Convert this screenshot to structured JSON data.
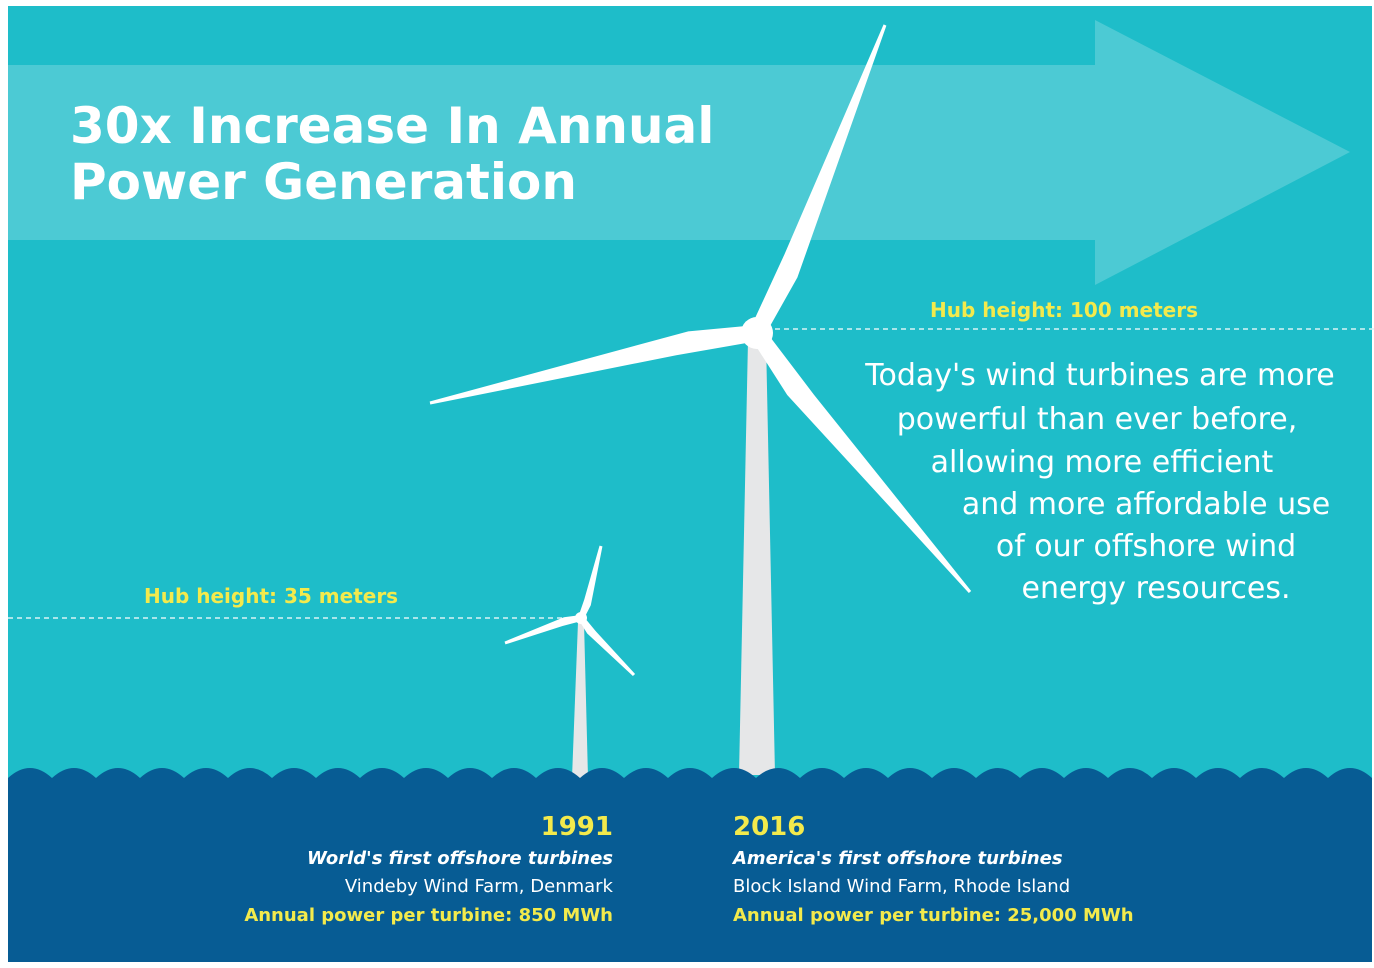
{
  "header": {
    "title_lines": [
      "30x Increase In Annual",
      "Power Generation"
    ]
  },
  "large_turbine": {
    "hub_height": "Hub height: 100 meters"
  },
  "small_turbine": {
    "hub_height": "Hub height: 35 meters"
  },
  "description": {
    "lines": [
      "Today's wind turbines are more",
      "powerful than ever before,",
      "allowing more efficient",
      "and more affordable use",
      "of our offshore wind",
      "energy resources."
    ]
  },
  "turbines": [
    {
      "year": "1991",
      "headline": "World's first offshore turbines",
      "location": "Vindeby Wind Farm, Denmark",
      "power": "Annual power per turbine: 850 MWh"
    },
    {
      "year": "2016",
      "headline": "America's first offshore turbines",
      "location": "Block Island Wind Farm, Rhode Island",
      "power": "Annual power per turbine: 25,000 MWh"
    }
  ]
}
